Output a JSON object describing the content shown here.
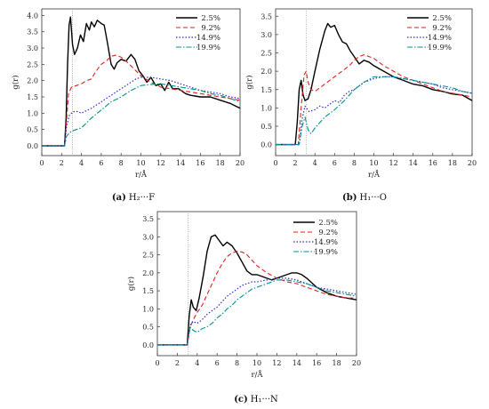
{
  "chart_data": [
    {
      "type": "line",
      "caption": {
        "tag": "(a)",
        "text": "H₂···F"
      },
      "xlabel": "r/Å",
      "ylabel": "g(r)",
      "xlim": [
        0,
        20
      ],
      "ylim": [
        -0.3,
        4.2
      ],
      "xticks": [
        "0",
        "2",
        "4",
        "6",
        "8",
        "10",
        "12",
        "14",
        "16",
        "18",
        "20"
      ],
      "yticks": [
        "0.0",
        "0.5",
        "1.0",
        "1.5",
        "2.0",
        "2.5",
        "3.0",
        "3.5",
        "4.0"
      ],
      "legend_position": "top-right",
      "ref_line_x": 3.1,
      "series": [
        {
          "name": "2.5%",
          "color": "#000000",
          "dash": "",
          "width": 1.4,
          "x": [
            0,
            2.3,
            2.45,
            2.6,
            2.75,
            2.9,
            3.1,
            3.3,
            3.6,
            3.9,
            4.2,
            4.5,
            4.8,
            5.0,
            5.3,
            5.6,
            6.0,
            6.3,
            6.6,
            7.0,
            7.3,
            7.6,
            8.0,
            8.5,
            9.0,
            9.4,
            9.8,
            10.2,
            10.6,
            11.0,
            11.5,
            12.0,
            12.4,
            12.8,
            13.2,
            13.8,
            14.5,
            15.0,
            16,
            17,
            18,
            19,
            20
          ],
          "y": [
            0,
            0,
            0.8,
            2.5,
            3.7,
            3.95,
            3.1,
            2.8,
            3.0,
            3.4,
            3.2,
            3.75,
            3.55,
            3.8,
            3.65,
            3.85,
            3.75,
            3.7,
            3.2,
            2.5,
            2.35,
            2.55,
            2.65,
            2.6,
            2.8,
            2.65,
            2.3,
            2.15,
            1.95,
            2.1,
            1.85,
            1.9,
            1.7,
            1.95,
            1.75,
            1.75,
            1.6,
            1.55,
            1.5,
            1.5,
            1.4,
            1.3,
            1.15
          ]
        },
        {
          "name": "9.2%",
          "color": "#e02020",
          "dash": "5,3",
          "width": 1.1,
          "x": [
            0,
            2.3,
            2.5,
            2.7,
            3.0,
            3.5,
            4,
            4.5,
            5,
            5.5,
            6,
            6.5,
            7,
            7.5,
            8,
            8.5,
            9,
            9.5,
            10,
            11,
            12,
            13,
            14,
            15,
            16,
            17,
            18,
            19,
            20
          ],
          "y": [
            0,
            0,
            0.8,
            1.6,
            1.8,
            1.85,
            1.9,
            2.0,
            2.05,
            2.3,
            2.5,
            2.6,
            2.75,
            2.78,
            2.72,
            2.6,
            2.45,
            2.3,
            2.15,
            1.95,
            1.8,
            1.75,
            1.7,
            1.65,
            1.6,
            1.55,
            1.5,
            1.45,
            1.4
          ]
        },
        {
          "name": "14.9%",
          "color": "#3030c0",
          "dash": "1.5,2",
          "width": 1.2,
          "x": [
            0,
            2.3,
            2.5,
            2.8,
            3.2,
            3.6,
            4,
            5,
            6,
            7,
            8,
            9,
            9.5,
            10,
            11,
            12,
            13,
            14,
            15,
            16,
            17,
            18,
            19,
            20
          ],
          "y": [
            0,
            0,
            0.6,
            0.95,
            1.05,
            1.05,
            1.0,
            1.15,
            1.35,
            1.55,
            1.75,
            1.95,
            2.05,
            2.1,
            2.1,
            2.05,
            2.0,
            1.9,
            1.8,
            1.7,
            1.65,
            1.6,
            1.5,
            1.45
          ]
        },
        {
          "name": "19.9%",
          "color": "#009090",
          "dash": "6,2,1.5,2",
          "width": 1.1,
          "x": [
            0,
            2.3,
            2.5,
            3.0,
            4,
            5,
            6,
            7,
            8,
            9,
            10,
            11,
            12,
            13,
            14,
            15,
            16,
            17,
            18,
            19,
            20
          ],
          "y": [
            0,
            0,
            0.3,
            0.45,
            0.55,
            0.85,
            1.1,
            1.35,
            1.5,
            1.7,
            1.85,
            1.88,
            1.9,
            1.85,
            1.8,
            1.75,
            1.7,
            1.6,
            1.55,
            1.45,
            1.35
          ]
        }
      ]
    },
    {
      "type": "line",
      "caption": {
        "tag": "(b)",
        "text": "H₁···O"
      },
      "xlabel": "r/Å",
      "ylabel": "g(r)",
      "xlim": [
        0,
        20
      ],
      "ylim": [
        -0.3,
        3.7
      ],
      "xticks": [
        "0",
        "2",
        "4",
        "6",
        "8",
        "10",
        "12",
        "14",
        "16",
        "18",
        "20"
      ],
      "yticks": [
        "0.0",
        "0.5",
        "1.0",
        "1.5",
        "2.0",
        "2.5",
        "3.0",
        "3.5"
      ],
      "legend_position": "top-right",
      "ref_line_x": 3.1,
      "series": [
        {
          "name": "2.5%",
          "color": "#000000",
          "dash": "",
          "width": 1.4,
          "x": [
            0,
            2.0,
            2.2,
            2.4,
            2.6,
            2.8,
            3.0,
            3.3,
            3.6,
            4,
            4.5,
            5,
            5.3,
            5.6,
            6,
            6.4,
            6.8,
            7.2,
            7.6,
            8,
            8.5,
            9,
            9.5,
            10,
            11,
            12,
            13,
            14,
            15,
            16,
            17,
            18,
            19,
            20
          ],
          "y": [
            0,
            0,
            0.6,
            1.5,
            1.75,
            1.35,
            1.2,
            1.25,
            1.5,
            2.0,
            2.6,
            3.1,
            3.3,
            3.2,
            3.25,
            3.0,
            2.8,
            2.75,
            2.55,
            2.4,
            2.2,
            2.3,
            2.25,
            2.15,
            2.0,
            1.85,
            1.75,
            1.65,
            1.6,
            1.5,
            1.45,
            1.38,
            1.35,
            1.2
          ]
        },
        {
          "name": "9.2%",
          "color": "#e02020",
          "dash": "5,3",
          "width": 1.1,
          "x": [
            0,
            2.3,
            2.6,
            2.9,
            3.1,
            3.3,
            3.6,
            4,
            4.5,
            5,
            5.5,
            6,
            6.5,
            7,
            7.5,
            8,
            8.5,
            9,
            9.5,
            10,
            11,
            12,
            13,
            14,
            15,
            16,
            17,
            18,
            19,
            20
          ],
          "y": [
            0,
            0,
            1.0,
            1.9,
            2.0,
            1.7,
            1.5,
            1.45,
            1.55,
            1.65,
            1.75,
            1.85,
            1.95,
            2.05,
            2.15,
            2.3,
            2.4,
            2.45,
            2.4,
            2.35,
            2.15,
            2.0,
            1.85,
            1.75,
            1.65,
            1.55,
            1.45,
            1.4,
            1.35,
            1.3
          ]
        },
        {
          "name": "14.9%",
          "color": "#3030c0",
          "dash": "1.5,2",
          "width": 1.2,
          "x": [
            0,
            2.4,
            2.7,
            3.0,
            3.4,
            4,
            4.5,
            5,
            5.5,
            6,
            6.5,
            7,
            7.5,
            8,
            8.5,
            9,
            9.5,
            10,
            11,
            12,
            13,
            14,
            15,
            16,
            17,
            18,
            19,
            20
          ],
          "y": [
            0,
            0,
            0.7,
            1.05,
            0.9,
            0.95,
            1.05,
            1.0,
            1.1,
            1.2,
            1.15,
            1.35,
            1.45,
            1.5,
            1.6,
            1.7,
            1.75,
            1.8,
            1.85,
            1.85,
            1.8,
            1.75,
            1.7,
            1.65,
            1.55,
            1.5,
            1.45,
            1.4
          ]
        },
        {
          "name": "19.9%",
          "color": "#009090",
          "dash": "6,2,1.5,2",
          "width": 1.1,
          "x": [
            0,
            2.4,
            2.7,
            3.0,
            3.3,
            3.6,
            4,
            4.5,
            5,
            5.5,
            6,
            7,
            8,
            9,
            10,
            11,
            12,
            13,
            14,
            15,
            16,
            17,
            18,
            19,
            20
          ],
          "y": [
            0,
            0,
            0.5,
            0.75,
            0.4,
            0.3,
            0.45,
            0.6,
            0.75,
            0.85,
            0.95,
            1.2,
            1.5,
            1.7,
            1.85,
            1.85,
            1.85,
            1.8,
            1.75,
            1.7,
            1.65,
            1.6,
            1.55,
            1.45,
            1.4
          ]
        }
      ]
    },
    {
      "type": "line",
      "caption": {
        "tag": "(c)",
        "text": "H₁···N"
      },
      "xlabel": "r/Å",
      "ylabel": "g(r)",
      "xlim": [
        0,
        20
      ],
      "ylim": [
        -0.3,
        3.7
      ],
      "xticks": [
        "0",
        "2",
        "4",
        "6",
        "8",
        "10",
        "12",
        "14",
        "16",
        "18",
        "20"
      ],
      "yticks": [
        "0.0",
        "0.5",
        "1.0",
        "1.5",
        "2.0",
        "2.5",
        "3.0",
        "3.5"
      ],
      "legend_position": "top-right",
      "ref_line_x": 3.1,
      "series": [
        {
          "name": "2.5%",
          "color": "#000000",
          "dash": "",
          "width": 1.4,
          "x": [
            0,
            3.0,
            3.2,
            3.4,
            3.6,
            3.9,
            4.2,
            4.6,
            5,
            5.4,
            5.8,
            6.2,
            6.6,
            7,
            7.5,
            8,
            8.5,
            9,
            9.5,
            10,
            10.5,
            11,
            11.5,
            12,
            12.5,
            13,
            13.5,
            14,
            14.5,
            15,
            16,
            17,
            18,
            19,
            20
          ],
          "y": [
            0,
            0,
            0.8,
            1.25,
            1.05,
            0.95,
            1.3,
            1.9,
            2.6,
            3.0,
            3.05,
            2.9,
            2.75,
            2.85,
            2.75,
            2.55,
            2.3,
            2.05,
            1.95,
            1.95,
            1.9,
            1.85,
            1.8,
            1.85,
            1.9,
            1.95,
            2.0,
            2.0,
            1.95,
            1.85,
            1.6,
            1.45,
            1.35,
            1.3,
            1.25
          ]
        },
        {
          "name": "9.2%",
          "color": "#e02020",
          "dash": "5,3",
          "width": 1.1,
          "x": [
            0,
            3.0,
            3.3,
            3.6,
            4,
            4.5,
            5,
            5.5,
            6,
            6.5,
            7,
            7.5,
            8,
            8.5,
            9,
            9.5,
            10,
            11,
            12,
            13,
            14,
            15,
            16,
            17,
            18,
            19,
            20
          ],
          "y": [
            0,
            0,
            0.5,
            0.7,
            0.9,
            1.1,
            1.4,
            1.7,
            2.0,
            2.25,
            2.45,
            2.55,
            2.6,
            2.58,
            2.5,
            2.35,
            2.2,
            2.0,
            1.85,
            1.75,
            1.7,
            1.6,
            1.5,
            1.4,
            1.35,
            1.3,
            1.3
          ]
        },
        {
          "name": "14.9%",
          "color": "#3030c0",
          "dash": "1.5,2",
          "width": 1.2,
          "x": [
            0,
            3.0,
            3.3,
            3.6,
            4,
            4.5,
            5,
            5.5,
            6,
            6.5,
            7,
            7.5,
            8,
            8.5,
            9,
            9.5,
            10,
            11,
            12,
            13,
            14,
            15,
            16,
            17,
            18,
            19,
            20
          ],
          "y": [
            0,
            0,
            0.55,
            0.65,
            0.6,
            0.7,
            0.85,
            0.95,
            1.05,
            1.2,
            1.35,
            1.45,
            1.55,
            1.65,
            1.7,
            1.75,
            1.75,
            1.8,
            1.85,
            1.85,
            1.8,
            1.7,
            1.6,
            1.55,
            1.5,
            1.45,
            1.4
          ]
        },
        {
          "name": "19.9%",
          "color": "#009090",
          "dash": "6,2,1.5,2",
          "width": 1.1,
          "x": [
            0,
            3.0,
            3.3,
            3.6,
            4,
            4.5,
            5,
            5.5,
            6,
            6.5,
            7,
            7.5,
            8,
            8.5,
            9,
            9.5,
            10,
            11,
            12,
            13,
            14,
            15,
            16,
            17,
            18,
            19,
            20
          ],
          "y": [
            0,
            0,
            0.5,
            0.4,
            0.35,
            0.45,
            0.5,
            0.6,
            0.75,
            0.85,
            1.0,
            1.1,
            1.25,
            1.35,
            1.45,
            1.55,
            1.6,
            1.7,
            1.8,
            1.8,
            1.75,
            1.7,
            1.6,
            1.5,
            1.45,
            1.4,
            1.35
          ]
        }
      ]
    }
  ]
}
